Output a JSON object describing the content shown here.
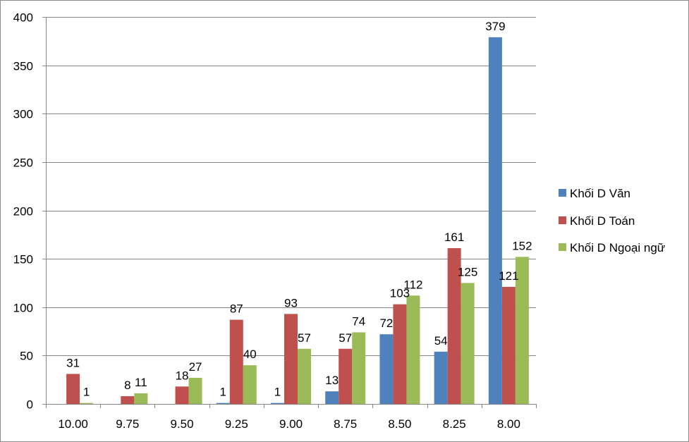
{
  "chart_data": {
    "type": "bar",
    "categories": [
      "10.00",
      "9.75",
      "9.50",
      "9.25",
      "9.00",
      "8.75",
      "8.50",
      "8.25",
      "8.00"
    ],
    "series": [
      {
        "name": "Khối D Văn",
        "color": "#4F81BD",
        "values": [
          0,
          0,
          0,
          1,
          1,
          13,
          72,
          54,
          379
        ],
        "labels": [
          "",
          "",
          "",
          "1",
          "1",
          "13",
          "72",
          "54",
          "379"
        ]
      },
      {
        "name": "Khối D Toán",
        "color": "#C0504D",
        "values": [
          31,
          8,
          18,
          87,
          93,
          57,
          103,
          161,
          121
        ],
        "labels": [
          "31",
          "8",
          "18",
          "87",
          "93",
          "57",
          "103",
          "161",
          "121"
        ]
      },
      {
        "name": "Khối D Ngoại ngữ",
        "color": "#9BBB59",
        "values": [
          1,
          11,
          27,
          40,
          57,
          74,
          112,
          125,
          152
        ],
        "labels": [
          "1",
          "11",
          "27",
          "40",
          "57",
          "74",
          "112",
          "125",
          "152"
        ]
      }
    ],
    "ylim": [
      0,
      400
    ],
    "yticks": [
      "0",
      "50",
      "100",
      "150",
      "200",
      "250",
      "300",
      "350",
      "400"
    ],
    "grid": true,
    "legend_position": "right",
    "title": "",
    "xlabel": "",
    "ylabel": ""
  }
}
